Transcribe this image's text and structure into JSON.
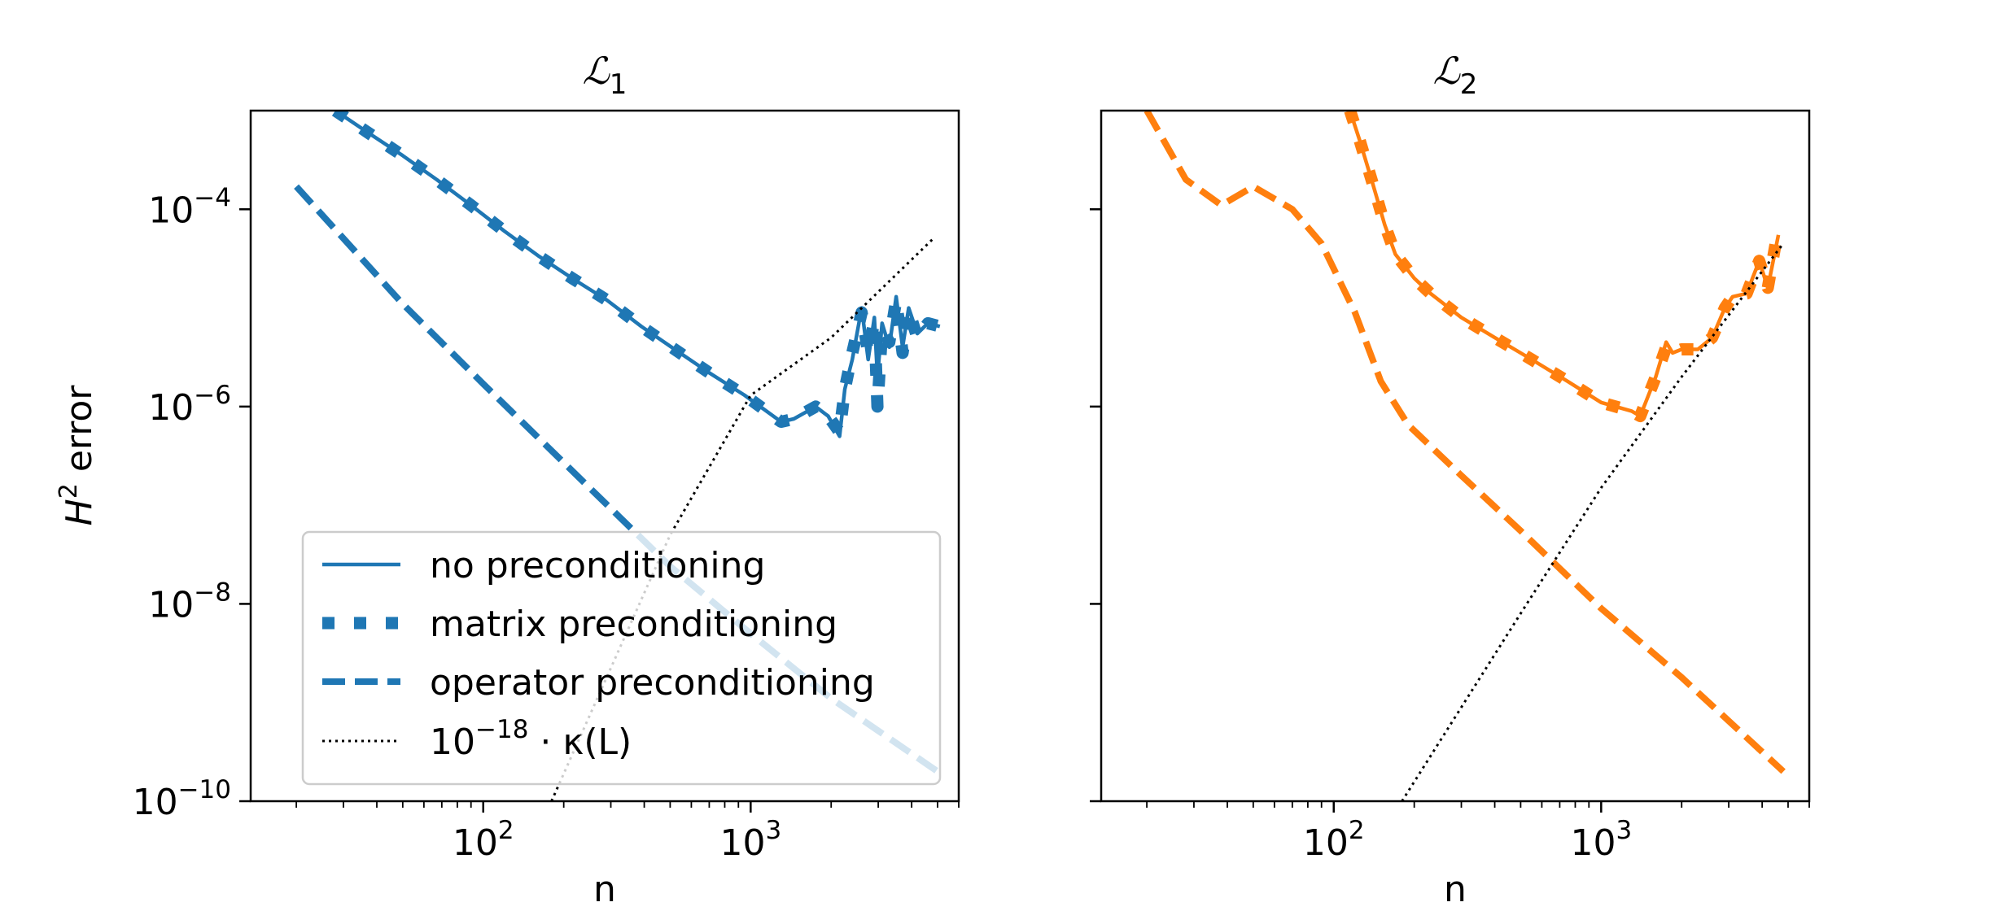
{
  "chart_data": [
    {
      "type": "line",
      "title": "ℒ",
      "title_sub": "1",
      "xlabel": "n",
      "ylabel": "H² error",
      "ylabel_italic": "H",
      "ylabel_sup": "2",
      "ylabel_rest": "error",
      "xscale": "log",
      "yscale": "log",
      "xlim": [
        13.5,
        6000
      ],
      "ylim": [
        1e-10,
        0.001
      ],
      "x_ticks": [
        {
          "base": "10",
          "exp": "2",
          "value": 100
        },
        {
          "base": "10",
          "exp": "3",
          "value": 1000
        }
      ],
      "y_ticks": [
        {
          "base": "10",
          "exp": "−4",
          "value": 0.0001
        },
        {
          "base": "10",
          "exp": "−6",
          "value": 1e-06
        },
        {
          "base": "10",
          "exp": "−8",
          "value": 1e-08
        },
        {
          "base": "10",
          "exp": "−10",
          "value": 1e-10
        }
      ],
      "grid": false,
      "legend_position": "lower-right",
      "legend": [
        {
          "label": "no preconditioning",
          "style": "solid",
          "color": "#1f77b4"
        },
        {
          "label": "matrix preconditioning",
          "style": "dotted-thick",
          "color": "#1f77b4"
        },
        {
          "label": "operator preconditioning",
          "style": "dashed",
          "color": "#1f77b4"
        },
        {
          "label_base": "10",
          "label_exp": "−18",
          "label_rest": " · κ(L)",
          "style": "dotted-thin",
          "color": "#000000"
        }
      ],
      "series": [
        {
          "name": "no preconditioning",
          "style": "solid",
          "color": "#1f77b4",
          "x": [
            28,
            37,
            50,
            67,
            90,
            120,
            160,
            215,
            290,
            390,
            520,
            700,
            950,
            1300,
            1450,
            1750,
            1950,
            2150,
            2250,
            2400,
            2600,
            2750,
            2900,
            2980,
            3100,
            3300,
            3500,
            3700,
            3900,
            4200,
            4600,
            5100
          ],
          "y": [
            0.001,
            0.0006,
            0.00035,
            0.0002,
            0.00011,
            6e-05,
            3.4e-05,
            2e-05,
            1.2e-05,
            6.5e-06,
            3.8e-06,
            2.2e-06,
            1.3e-06,
            7e-07,
            7.5e-07,
            1e-06,
            8e-07,
            5e-07,
            1.5e-06,
            3e-06,
            1e-05,
            3e-06,
            8e-06,
            2e-06,
            7e-06,
            4e-06,
            1.3e-05,
            4e-06,
            1e-05,
            5.5e-06,
            7e-06,
            6.5e-06
          ]
        },
        {
          "name": "matrix preconditioning",
          "style": "dotted-thick",
          "color": "#1f77b4",
          "x": [
            28,
            37,
            50,
            67,
            90,
            120,
            160,
            215,
            290,
            390,
            520,
            700,
            950,
            1300,
            1450,
            1750,
            1950,
            2150,
            2250,
            2400,
            2600,
            2750,
            2900,
            2980,
            3100,
            3300,
            3500,
            3700,
            3900,
            4200,
            4600,
            5100
          ],
          "y": [
            0.001,
            0.0006,
            0.00035,
            0.0002,
            0.00011,
            6e-05,
            3.4e-05,
            2e-05,
            1.2e-05,
            6.5e-06,
            3.8e-06,
            2.2e-06,
            1.3e-06,
            7e-07,
            7.5e-07,
            1e-06,
            8e-07,
            5.5e-07,
            1.5e-06,
            3.5e-06,
            9e-06,
            3.5e-06,
            7.5e-06,
            1e-06,
            6e-06,
            4.5e-06,
            1.2e-05,
            3.5e-06,
            9.5e-06,
            5e-06,
            7e-06,
            6.5e-06
          ]
        },
        {
          "name": "operator preconditioning",
          "style": "dashed",
          "color": "#1f77b4",
          "x": [
            20,
            50,
            100,
            200,
            500,
            1000,
            2000,
            5000
          ],
          "y": [
            0.00017,
            1.1e-05,
            1.7e-06,
            2.7e-07,
            2.4e-08,
            5e-09,
            1.1e-09,
            2e-10
          ]
        },
        {
          "name": "10⁻¹⁸ · κ(L)",
          "style": "dotted-thin",
          "color": "#000000",
          "x": [
            180,
            500,
            1000,
            2000,
            4800
          ],
          "y": [
            1e-10,
            5e-08,
            1.3e-06,
            5e-06,
            5e-05
          ]
        }
      ]
    },
    {
      "type": "line",
      "title": "ℒ",
      "title_sub": "2",
      "xlabel": "n",
      "ylabel": "",
      "xscale": "log",
      "yscale": "log",
      "xlim": [
        13.5,
        6000
      ],
      "ylim": [
        1e-10,
        0.001
      ],
      "x_ticks": [
        {
          "base": "10",
          "exp": "2",
          "value": 100
        },
        {
          "base": "10",
          "exp": "3",
          "value": 1000
        }
      ],
      "y_ticks": [
        {
          "base": "",
          "exp": "",
          "value": 0.0001
        },
        {
          "base": "",
          "exp": "",
          "value": 1e-06
        },
        {
          "base": "",
          "exp": "",
          "value": 1e-08
        },
        {
          "base": "",
          "exp": "",
          "value": 1e-10
        }
      ],
      "grid": false,
      "series": [
        {
          "name": "no preconditioning",
          "style": "solid",
          "color": "#ff7f0e",
          "x": [
            115,
            125,
            140,
            155,
            170,
            200,
            230,
            300,
            400,
            550,
            750,
            1000,
            1300,
            1400,
            1600,
            1750,
            1850,
            2000,
            2300,
            2600,
            2900,
            3100,
            3500,
            3900,
            4200,
            4600
          ],
          "y": [
            0.001,
            0.0005,
            0.00018,
            7e-05,
            3.5e-05,
            2e-05,
            1.4e-05,
            8e-06,
            5e-06,
            3e-06,
            1.8e-06,
            1.1e-06,
            9e-07,
            8e-07,
            2e-06,
            4.5e-06,
            3.5e-06,
            3.8e-06,
            3.8e-06,
            5e-06,
            1e-05,
            1.3e-05,
            1.4e-05,
            3e-05,
            1.6e-05,
            5.5e-05
          ]
        },
        {
          "name": "matrix preconditioning",
          "style": "dotted-thick",
          "color": "#ff7f0e",
          "x": [
            115,
            125,
            140,
            155,
            170,
            200,
            230,
            300,
            400,
            550,
            750,
            1000,
            1300,
            1400,
            1600,
            1750,
            1850,
            2000,
            2300,
            2600,
            2900,
            3100,
            3500,
            3900,
            4200,
            4600
          ],
          "y": [
            0.001,
            0.0005,
            0.00018,
            7e-05,
            3.5e-05,
            2e-05,
            1.4e-05,
            8e-06,
            5e-06,
            3e-06,
            1.8e-06,
            1.1e-06,
            9e-07,
            8e-07,
            2e-06,
            4e-06,
            3.5e-06,
            3.8e-06,
            3.8e-06,
            5e-06,
            1e-05,
            1.3e-05,
            1.4e-05,
            3e-05,
            1.6e-05,
            6.5e-05
          ]
        },
        {
          "name": "operator preconditioning",
          "style": "dashed",
          "color": "#ff7f0e",
          "x": [
            20,
            28,
            38,
            50,
            70,
            90,
            120,
            150,
            190,
            300,
            500,
            1000,
            2000,
            4800
          ],
          "y": [
            0.001,
            0.0002,
            0.00011,
            0.00017,
            0.0001,
            4.5e-05,
            9e-06,
            1.8e-06,
            6.5e-07,
            2e-07,
            5.5e-08,
            9e-09,
            1.8e-09,
            2e-10
          ]
        },
        {
          "name": "10⁻¹⁸ · κ(L)",
          "style": "dotted-thin",
          "color": "#000000",
          "x": [
            180,
            500,
            1000,
            2000,
            4800
          ],
          "y": [
            1e-10,
            8e-09,
            1.5e-07,
            2e-06,
            4.5e-05
          ]
        }
      ]
    }
  ]
}
